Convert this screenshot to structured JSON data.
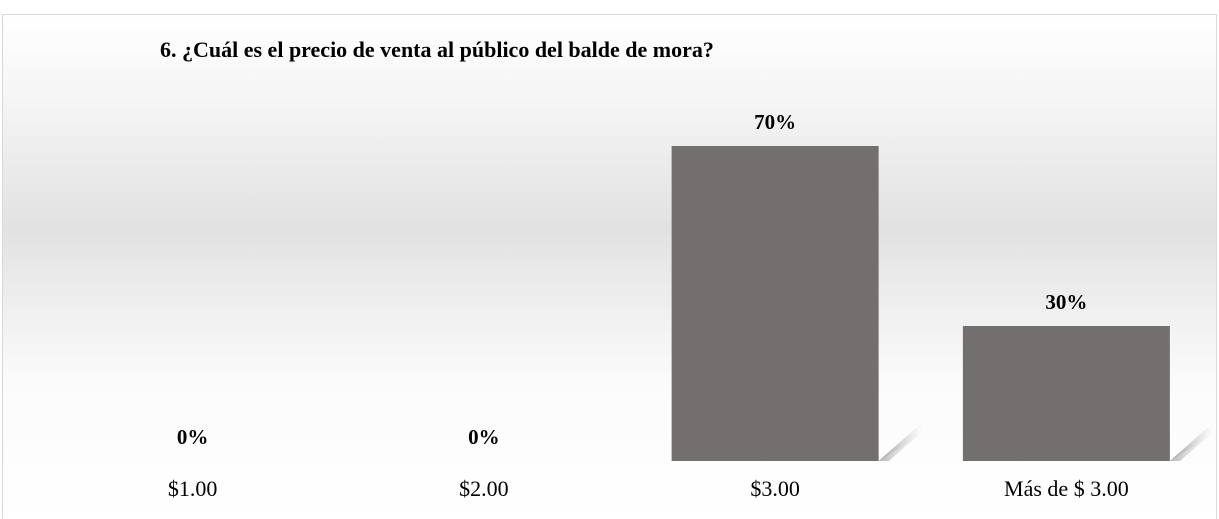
{
  "chart_data": {
    "type": "bar",
    "title": "6. ¿Cuál es el precio de venta al público del balde de mora?",
    "categories": [
      "$1.00",
      "$2.00",
      "$3.00",
      "Más de $ 3.00"
    ],
    "values": [
      0,
      0,
      70,
      30
    ],
    "value_labels": [
      "0%",
      "0%",
      "70%",
      "30%"
    ],
    "color": "#736f6e"
  }
}
